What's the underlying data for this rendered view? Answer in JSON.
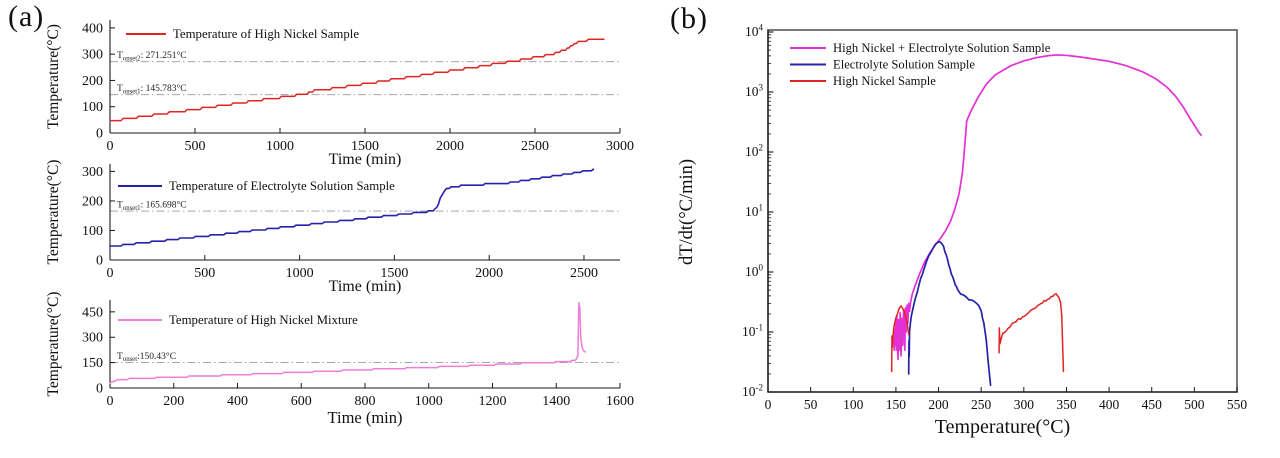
{
  "page": {
    "panel_a_label": "(a)",
    "panel_b_label": "(b)"
  },
  "colors": {
    "axis": "#1a1a1a",
    "frame": "#6a6a6a",
    "annotation_line": "#999999",
    "red": "#e02421",
    "blue": "#2323a9",
    "pink": "#ee7fd8",
    "magenta": "#e331d6"
  },
  "chart_data": [
    {
      "id": "a1",
      "type": "line",
      "x_label": "Time (min)",
      "y_label": "Temperature(°C)",
      "x_range": [
        0,
        3000
      ],
      "x_ticks": [
        0,
        500,
        1000,
        1500,
        2000,
        2500,
        3000
      ],
      "y_range": [
        0,
        430
      ],
      "y_ticks": [
        0,
        100,
        200,
        300,
        400
      ],
      "grid": false,
      "legend_position": "top-left",
      "legend": [
        {
          "label": "Temperature of High Nickel Sample",
          "color": "#e02421"
        }
      ],
      "annotations": [
        {
          "pre": "T",
          "sub": "onset2",
          "post": ": 271.251°C",
          "y": 271.251
        },
        {
          "pre": "T",
          "sub": "onset1",
          "post": ": 145.783°C",
          "y": 145.783
        }
      ],
      "series": [
        {
          "name": "Temperature of High Nickel Sample",
          "color": "#e02421",
          "width": 1.5,
          "stairs": 2.2,
          "points": [
            [
              0,
              45
            ],
            [
              1150,
              149
            ],
            [
              1180,
              154
            ],
            [
              1215,
              164
            ],
            [
              1270,
              167
            ],
            [
              1320,
              170
            ],
            [
              2000,
              236
            ],
            [
              2350,
              271
            ],
            [
              2430,
              279
            ],
            [
              2550,
              293
            ],
            [
              2620,
              304
            ],
            [
              2680,
              319
            ],
            [
              2720,
              336
            ],
            [
              2755,
              347
            ],
            [
              2790,
              352
            ],
            [
              2850,
              355
            ],
            [
              2905,
              358
            ]
          ]
        }
      ]
    },
    {
      "id": "a2",
      "type": "line",
      "x_label": "Time (min)",
      "y_label": "Temperature(°C)",
      "x_range": [
        0,
        2690
      ],
      "x_ticks": [
        0,
        500,
        1000,
        1500,
        2000,
        2500
      ],
      "y_range": [
        0,
        325
      ],
      "y_ticks": [
        0,
        100,
        200,
        300
      ],
      "grid": false,
      "legend_position": "top-left",
      "legend": [
        {
          "label": "Temperature of Electrolyte Solution Sample",
          "color": "#2323a9"
        }
      ],
      "annotations": [
        {
          "pre": "T",
          "sub": "onset1",
          "post": ": 165.698°C",
          "y": 165.698
        }
      ],
      "series": [
        {
          "name": "Temperature of Electrolyte Solution Sample",
          "color": "#2323a9",
          "width": 1.6,
          "stairs": 1.6,
          "points": [
            [
              0,
              46
            ],
            [
              300,
              67
            ],
            [
              600,
              88
            ],
            [
              900,
              110
            ],
            [
              1200,
              131
            ],
            [
              1500,
              152
            ],
            [
              1680,
              164
            ],
            [
              1700,
              167
            ],
            [
              1712,
              171
            ],
            [
              1722,
              178
            ],
            [
              1732,
              190
            ],
            [
              1742,
              208
            ],
            [
              1752,
              222
            ],
            [
              1762,
              232
            ],
            [
              1775,
              240
            ],
            [
              1790,
              245
            ],
            [
              1815,
              248
            ],
            [
              1850,
              251
            ],
            [
              1900,
              253
            ],
            [
              2000,
              257
            ],
            [
              2100,
              261
            ],
            [
              2300,
              280
            ],
            [
              2550,
              305
            ]
          ]
        }
      ]
    },
    {
      "id": "a3",
      "type": "line",
      "x_label": "Time (min)",
      "y_label": "Temperature(°C)",
      "x_range": [
        0,
        1600
      ],
      "x_ticks": [
        0,
        200,
        400,
        600,
        800,
        1000,
        1200,
        1400,
        1600
      ],
      "y_range": [
        0,
        520
      ],
      "y_ticks": [
        0,
        150,
        300,
        450
      ],
      "grid": false,
      "legend_position": "top-left",
      "legend": [
        {
          "label": "Temperature of High Nickel Mixture",
          "color": "#ee7fd8"
        }
      ],
      "annotations": [
        {
          "pre": "T",
          "sub": "onset",
          "post": ":150.43°C",
          "y": 150.43
        }
      ],
      "series": [
        {
          "name": "Temperature of High Nickel Mixture",
          "color": "#ee7fd8",
          "width": 1.5,
          "stairs": 1.2,
          "points": [
            [
              0,
              27
            ],
            [
              8,
              38
            ],
            [
              18,
              46
            ],
            [
              35,
              51
            ],
            [
              80,
              56
            ],
            [
              200,
              64
            ],
            [
              400,
              78
            ],
            [
              600,
              93
            ],
            [
              800,
              108
            ],
            [
              1000,
              122
            ],
            [
              1150,
              133
            ],
            [
              1300,
              146
            ],
            [
              1380,
              151
            ],
            [
              1430,
              156
            ],
            [
              1455,
              161
            ],
            [
              1463,
              168
            ],
            [
              1468,
              190
            ],
            [
              1471,
              505
            ],
            [
              1474,
              478
            ],
            [
              1477,
              300
            ],
            [
              1481,
              240
            ],
            [
              1486,
              218
            ],
            [
              1491,
              213
            ]
          ]
        }
      ]
    },
    {
      "id": "b",
      "type": "line",
      "x_label": "Temperature(°C)",
      "y_label": "dT/dt(°C/min)",
      "x_range": [
        0,
        550
      ],
      "x_ticks": [
        0,
        50,
        100,
        150,
        200,
        250,
        300,
        350,
        400,
        450,
        500,
        550
      ],
      "y_scale": "log",
      "y_range": [
        0.01,
        10000
      ],
      "y_tick_exp": [
        4,
        3,
        2,
        1,
        0,
        -1,
        -2
      ],
      "grid": false,
      "frame": true,
      "legend_position": "top-left",
      "legend": [
        {
          "label": "High Nickel + Electrolyte Solution Sample",
          "color": "#e331d6"
        },
        {
          "label": "Electrolyte Solution Sample",
          "color": "#2323a9"
        },
        {
          "label": "High Nickel Sample",
          "color": "#e02421"
        }
      ],
      "series": [
        {
          "name": "High Nickel + Electrolyte Solution Sample",
          "color": "#e331d6",
          "width": 1.7,
          "jitter": 0,
          "points": [
            [
              148,
              0.05
            ],
            [
              148.5,
              0.11
            ],
            [
              149,
              0.06
            ],
            [
              150,
              0.16
            ],
            [
              150.5,
              0.05
            ],
            [
              151,
              0.19
            ],
            [
              152,
              0.06
            ],
            [
              152.5,
              0.035
            ],
            [
              153,
              0.16
            ],
            [
              154,
              0.05
            ],
            [
              155,
              0.21
            ],
            [
              155.5,
              0.07
            ],
            [
              156,
              0.04
            ],
            [
              157,
              0.17
            ],
            [
              158,
              0.06
            ],
            [
              159,
              0.23
            ],
            [
              160,
              0.09
            ],
            [
              160.5,
              0.05
            ],
            [
              161,
              0.25
            ],
            [
              162,
              0.1
            ],
            [
              163,
              0.28
            ],
            [
              164,
              0.14
            ],
            [
              165,
              0.3
            ],
            [
              166,
              0.22
            ],
            [
              167,
              0.3
            ],
            [
              169,
              0.42
            ],
            [
              173,
              0.62
            ],
            [
              178,
              0.95
            ],
            [
              184,
              1.5
            ],
            [
              190,
              2.1
            ],
            [
              196,
              2.8
            ],
            [
              202,
              3.6
            ],
            [
              208,
              4.8
            ],
            [
              214,
              7
            ],
            [
              219,
              11
            ],
            [
              224,
              20
            ],
            [
              228,
              45
            ],
            [
              231,
              140
            ],
            [
              233,
              330
            ],
            [
              238,
              480
            ],
            [
              246,
              800
            ],
            [
              256,
              1350
            ],
            [
              266,
              1900
            ],
            [
              272,
              2150
            ],
            [
              285,
              2750
            ],
            [
              300,
              3300
            ],
            [
              315,
              3750
            ],
            [
              330,
              4050
            ],
            [
              340,
              4150
            ],
            [
              352,
              4050
            ],
            [
              368,
              3800
            ],
            [
              385,
              3500
            ],
            [
              400,
              3250
            ],
            [
              420,
              2750
            ],
            [
              440,
              2150
            ],
            [
              455,
              1650
            ],
            [
              468,
              1200
            ],
            [
              478,
              850
            ],
            [
              487,
              560
            ],
            [
              494,
              380
            ],
            [
              500,
              280
            ],
            [
              505,
              215
            ],
            [
              508,
              190
            ]
          ]
        },
        {
          "name": "Electrolyte Solution Sample",
          "color": "#2323a9",
          "width": 1.7,
          "jitter": 1.1,
          "points": [
            [
              165,
              0.02
            ],
            [
              165.3,
              0.07
            ],
            [
              165.6,
              0.04
            ],
            [
              166,
              0.1
            ],
            [
              167,
              0.14
            ],
            [
              168,
              0.18
            ],
            [
              170,
              0.25
            ],
            [
              173,
              0.38
            ],
            [
              177,
              0.6
            ],
            [
              181,
              0.95
            ],
            [
              186,
              1.5
            ],
            [
              191,
              2.2
            ],
            [
              196,
              2.9
            ],
            [
              200,
              3.25
            ],
            [
              203,
              3.1
            ],
            [
              206,
              2.6
            ],
            [
              209,
              1.9
            ],
            [
              212,
              1.3
            ],
            [
              215,
              0.95
            ],
            [
              218,
              0.72
            ],
            [
              221,
              0.56
            ],
            [
              224,
              0.47
            ],
            [
              228,
              0.41
            ],
            [
              233,
              0.37
            ],
            [
              238,
              0.34
            ],
            [
              243,
              0.31
            ],
            [
              247,
              0.27
            ],
            [
              250,
              0.22
            ],
            [
              253,
              0.14
            ],
            [
              256,
              0.07
            ],
            [
              258,
              0.035
            ],
            [
              260,
              0.018
            ],
            [
              261,
              0.013
            ]
          ]
        },
        {
          "name": "High Nickel Sample (low-T exotherm)",
          "color": "#e02421",
          "width": 1.5,
          "jitter": 1.2,
          "points": [
            [
              145,
              0.022
            ],
            [
              145.4,
              0.09
            ],
            [
              146,
              0.055
            ],
            [
              147,
              0.1
            ],
            [
              148,
              0.13
            ],
            [
              150,
              0.17
            ],
            [
              152,
              0.21
            ],
            [
              154,
              0.25
            ],
            [
              156,
              0.27
            ],
            [
              158,
              0.25
            ],
            [
              160,
              0.21
            ],
            [
              162,
              0.17
            ],
            [
              163.5,
              0.13
            ],
            [
              165,
              0.09
            ]
          ]
        },
        {
          "name": "High Nickel Sample (high-T exotherm)",
          "color": "#e02421",
          "width": 1.5,
          "jitter": 1.4,
          "points": [
            [
              271,
              0.045
            ],
            [
              271.3,
              0.12
            ],
            [
              272,
              0.065
            ],
            [
              274,
              0.085
            ],
            [
              277,
              0.1
            ],
            [
              281,
              0.115
            ],
            [
              286,
              0.13
            ],
            [
              291,
              0.15
            ],
            [
              296,
              0.165
            ],
            [
              301,
              0.185
            ],
            [
              306,
              0.21
            ],
            [
              312,
              0.245
            ],
            [
              318,
              0.285
            ],
            [
              324,
              0.33
            ],
            [
              330,
              0.375
            ],
            [
              334,
              0.405
            ],
            [
              338,
              0.41
            ],
            [
              341,
              0.385
            ],
            [
              343,
              0.33
            ],
            [
              344.5,
              0.18
            ],
            [
              345.5,
              0.06
            ],
            [
              346.5,
              0.022
            ]
          ]
        }
      ]
    }
  ]
}
